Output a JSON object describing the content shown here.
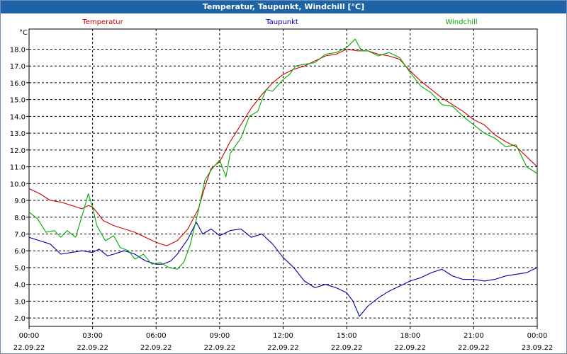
{
  "window": {
    "title": "Temperatur, Taupunkt, Windchill [°C]"
  },
  "chart_data": {
    "type": "line",
    "title": "Temperatur, Taupunkt, Windchill [°C]",
    "ylabel": "°C",
    "ylim": [
      1.5,
      19.2
    ],
    "xlim": [
      0,
      24
    ],
    "yticks": [
      2.0,
      3.0,
      4.0,
      5.0,
      6.0,
      7.0,
      8.0,
      9.0,
      10.0,
      11.0,
      12.0,
      13.0,
      14.0,
      15.0,
      16.0,
      17.0,
      18.0
    ],
    "xticks": [
      {
        "x": 0,
        "time": "00:00",
        "date": "22.09.22"
      },
      {
        "x": 3,
        "time": "03:00",
        "date": "22.09.22"
      },
      {
        "x": 6,
        "time": "06:00",
        "date": "22.09.22"
      },
      {
        "x": 9,
        "time": "09:00",
        "date": "22.09.22"
      },
      {
        "x": 12,
        "time": "12:00",
        "date": "22.09.22"
      },
      {
        "x": 15,
        "time": "15:00",
        "date": "22.09.22"
      },
      {
        "x": 18,
        "time": "18:00",
        "date": "22.09.22"
      },
      {
        "x": 21,
        "time": "21:00",
        "date": "22.09.22"
      },
      {
        "x": 24,
        "time": "00:00",
        "date": "23.09.22"
      }
    ],
    "grid": true,
    "series": [
      {
        "name": "Temperatur",
        "color": "#cc0000",
        "points": [
          [
            0,
            9.7
          ],
          [
            0.5,
            9.4
          ],
          [
            1,
            9.0
          ],
          [
            1.5,
            8.9
          ],
          [
            2,
            8.7
          ],
          [
            2.5,
            8.5
          ],
          [
            2.8,
            8.7
          ],
          [
            3,
            8.6
          ],
          [
            3.2,
            8.3
          ],
          [
            3.5,
            7.8
          ],
          [
            4,
            7.5
          ],
          [
            4.5,
            7.3
          ],
          [
            5,
            7.1
          ],
          [
            5.5,
            6.8
          ],
          [
            6,
            6.5
          ],
          [
            6.5,
            6.3
          ],
          [
            7,
            6.6
          ],
          [
            7.5,
            7.3
          ],
          [
            8,
            8.5
          ],
          [
            8.3,
            9.8
          ],
          [
            8.6,
            10.9
          ],
          [
            9,
            11.3
          ],
          [
            9.5,
            12.5
          ],
          [
            10,
            13.5
          ],
          [
            10.5,
            14.5
          ],
          [
            11,
            15.3
          ],
          [
            11.5,
            16.0
          ],
          [
            12,
            16.5
          ],
          [
            12.5,
            16.8
          ],
          [
            13,
            17.0
          ],
          [
            13.5,
            17.3
          ],
          [
            14,
            17.6
          ],
          [
            14.5,
            17.7
          ],
          [
            15,
            18.0
          ],
          [
            15.5,
            17.9
          ],
          [
            16,
            17.9
          ],
          [
            16.5,
            17.7
          ],
          [
            17,
            17.6
          ],
          [
            17.5,
            17.4
          ],
          [
            18,
            16.7
          ],
          [
            18.5,
            16.1
          ],
          [
            19,
            15.6
          ],
          [
            19.5,
            15.1
          ],
          [
            20,
            14.7
          ],
          [
            20.5,
            14.3
          ],
          [
            21,
            13.8
          ],
          [
            21.5,
            13.5
          ],
          [
            22,
            12.9
          ],
          [
            22.5,
            12.5
          ],
          [
            23,
            12.2
          ],
          [
            23.5,
            11.6
          ],
          [
            24,
            11.0
          ]
        ]
      },
      {
        "name": "Taupunkt",
        "color": "#0000aa",
        "points": [
          [
            0,
            6.8
          ],
          [
            0.5,
            6.6
          ],
          [
            1,
            6.4
          ],
          [
            1.5,
            5.8
          ],
          [
            2,
            5.9
          ],
          [
            2.5,
            6.0
          ],
          [
            3,
            5.9
          ],
          [
            3.3,
            6.1
          ],
          [
            3.7,
            5.7
          ],
          [
            4,
            5.8
          ],
          [
            4.5,
            6.0
          ],
          [
            5,
            5.8
          ],
          [
            5.5,
            5.4
          ],
          [
            6,
            5.2
          ],
          [
            6.3,
            5.2
          ],
          [
            6.7,
            5.4
          ],
          [
            7,
            5.8
          ],
          [
            7.5,
            6.7
          ],
          [
            7.9,
            7.7
          ],
          [
            8.2,
            7.0
          ],
          [
            8.6,
            7.3
          ],
          [
            9,
            6.9
          ],
          [
            9.5,
            7.2
          ],
          [
            10,
            7.3
          ],
          [
            10.5,
            6.8
          ],
          [
            11,
            7.0
          ],
          [
            11.5,
            6.4
          ],
          [
            12,
            5.6
          ],
          [
            12.5,
            5.0
          ],
          [
            13,
            4.2
          ],
          [
            13.5,
            3.8
          ],
          [
            14,
            4.0
          ],
          [
            14.5,
            3.8
          ],
          [
            15,
            3.5
          ],
          [
            15.3,
            3.0
          ],
          [
            15.6,
            2.1
          ],
          [
            16,
            2.7
          ],
          [
            16.5,
            3.2
          ],
          [
            17,
            3.6
          ],
          [
            17.5,
            3.9
          ],
          [
            18,
            4.2
          ],
          [
            18.5,
            4.4
          ],
          [
            19,
            4.7
          ],
          [
            19.5,
            4.9
          ],
          [
            20,
            4.5
          ],
          [
            20.5,
            4.3
          ],
          [
            21,
            4.3
          ],
          [
            21.5,
            4.2
          ],
          [
            22,
            4.3
          ],
          [
            22.5,
            4.5
          ],
          [
            23,
            4.6
          ],
          [
            23.5,
            4.7
          ],
          [
            24,
            5.0
          ]
        ]
      },
      {
        "name": "Windchill",
        "color": "#00aa00",
        "points": [
          [
            0,
            8.3
          ],
          [
            0.4,
            7.9
          ],
          [
            0.8,
            7.1
          ],
          [
            1.2,
            7.2
          ],
          [
            1.5,
            6.8
          ],
          [
            1.8,
            7.2
          ],
          [
            2.2,
            6.8
          ],
          [
            2.6,
            8.5
          ],
          [
            2.8,
            9.4
          ],
          [
            3,
            8.6
          ],
          [
            3.2,
            7.5
          ],
          [
            3.6,
            6.6
          ],
          [
            4,
            6.9
          ],
          [
            4.3,
            6.2
          ],
          [
            4.7,
            6.0
          ],
          [
            5,
            5.5
          ],
          [
            5.4,
            5.8
          ],
          [
            5.8,
            5.2
          ],
          [
            6.2,
            5.3
          ],
          [
            6.6,
            5.0
          ],
          [
            7,
            4.9
          ],
          [
            7.3,
            5.3
          ],
          [
            7.6,
            6.3
          ],
          [
            8,
            8.4
          ],
          [
            8.3,
            10.2
          ],
          [
            8.6,
            10.8
          ],
          [
            9,
            11.4
          ],
          [
            9.3,
            10.4
          ],
          [
            9.5,
            11.8
          ],
          [
            10,
            12.7
          ],
          [
            10.4,
            14.0
          ],
          [
            10.8,
            14.3
          ],
          [
            11,
            15.0
          ],
          [
            11.2,
            15.6
          ],
          [
            11.5,
            15.5
          ],
          [
            12,
            16.2
          ],
          [
            12.3,
            16.5
          ],
          [
            12.6,
            17.0
          ],
          [
            13,
            17.1
          ],
          [
            13.5,
            17.2
          ],
          [
            14,
            17.7
          ],
          [
            14.5,
            17.8
          ],
          [
            15,
            18.1
          ],
          [
            15.4,
            18.6
          ],
          [
            15.7,
            17.9
          ],
          [
            16,
            17.9
          ],
          [
            16.5,
            17.6
          ],
          [
            17,
            17.8
          ],
          [
            17.5,
            17.5
          ],
          [
            18,
            16.6
          ],
          [
            18.5,
            15.8
          ],
          [
            19,
            15.4
          ],
          [
            19.5,
            14.7
          ],
          [
            20,
            14.6
          ],
          [
            20.5,
            14.0
          ],
          [
            21,
            13.5
          ],
          [
            21.5,
            13.0
          ],
          [
            22,
            12.7
          ],
          [
            22.5,
            12.2
          ],
          [
            23,
            12.3
          ],
          [
            23.5,
            11.0
          ],
          [
            24,
            10.6
          ]
        ]
      }
    ]
  }
}
